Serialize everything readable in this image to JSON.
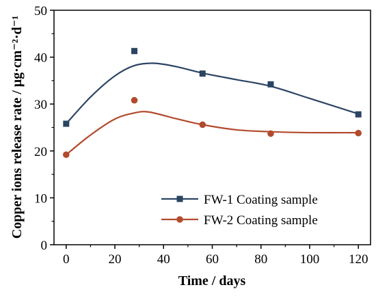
{
  "chart_data": {
    "type": "line",
    "xlabel": "Time / days",
    "ylabel": "Copper ions release rate / μg·cm⁻²·d⁻¹",
    "xlim": [
      -5,
      125
    ],
    "ylim": [
      0,
      50
    ],
    "x_ticks": [
      0,
      20,
      40,
      60,
      80,
      100,
      120
    ],
    "y_ticks": [
      0,
      10,
      20,
      30,
      40,
      50
    ],
    "grid": false,
    "legend_position": "lower-right",
    "x": [
      0,
      28,
      56,
      84,
      120
    ],
    "series": [
      {
        "name": "FW-1 Coating sample",
        "marker": "square",
        "color": "#2b4463",
        "values": [
          25.8,
          41.3,
          36.5,
          34.2,
          27.8
        ],
        "fit_curve": [
          [
            0,
            25.8
          ],
          [
            10,
            31.5
          ],
          [
            20,
            36.0
          ],
          [
            28,
            38.2
          ],
          [
            36,
            38.7
          ],
          [
            45,
            38.0
          ],
          [
            56,
            36.6
          ],
          [
            70,
            35.2
          ],
          [
            84,
            33.8
          ],
          [
            100,
            31.2
          ],
          [
            120,
            27.9
          ]
        ]
      },
      {
        "name": "FW-2 Coating sample",
        "marker": "circle",
        "color": "#b24a2d",
        "values": [
          19.2,
          30.8,
          25.6,
          23.7,
          23.8
        ],
        "fit_curve": [
          [
            0,
            19.2
          ],
          [
            10,
            23.4
          ],
          [
            20,
            26.8
          ],
          [
            28,
            28.1
          ],
          [
            34,
            28.3
          ],
          [
            45,
            26.9
          ],
          [
            56,
            25.6
          ],
          [
            70,
            24.5
          ],
          [
            84,
            24.1
          ],
          [
            100,
            23.9
          ],
          [
            120,
            23.9
          ]
        ]
      }
    ]
  }
}
